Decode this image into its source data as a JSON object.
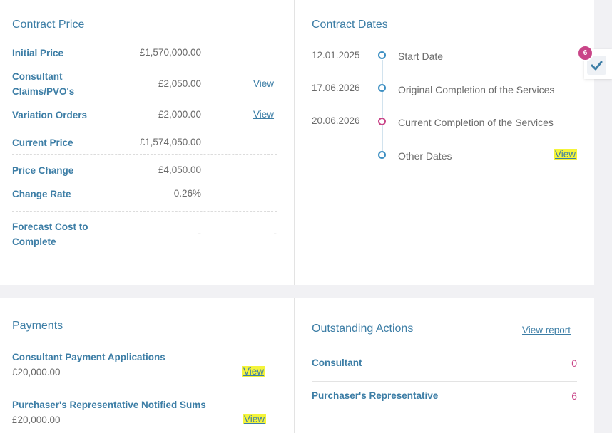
{
  "contract_price": {
    "title": "Contract Price",
    "rows": [
      {
        "label": "Initial Price",
        "value": "£1,570,000.00"
      },
      {
        "label": "Consultant Claims/PVO's",
        "value": "£2,050.00",
        "link": "View"
      },
      {
        "label": "Variation Orders",
        "value": "£2,000.00",
        "link": "View"
      },
      {
        "label": "Current Price",
        "value": "£1,574,050.00"
      },
      {
        "label": "Price Change",
        "value": "£4,050.00"
      },
      {
        "label": "Change Rate",
        "value": "0.26%"
      },
      {
        "label": "Forecast Cost to Complete",
        "value": "-",
        "extra": "-"
      }
    ]
  },
  "contract_dates": {
    "title": "Contract Dates",
    "items": [
      {
        "date": "12.01.2025",
        "label": "Start Date",
        "status": "blue"
      },
      {
        "date": "17.06.2026",
        "label": "Original Completion of the Services",
        "status": "blue"
      },
      {
        "date": "20.06.2026",
        "label": "Current Completion of the Services",
        "status": "pink"
      },
      {
        "date": "",
        "label": "Other Dates",
        "status": "blue",
        "link": "View"
      }
    ]
  },
  "notification": {
    "badge_count": "6"
  },
  "payments": {
    "title": "Payments",
    "items": [
      {
        "label": "Consultant Payment Applications",
        "amount": "£20,000.00",
        "link": "View"
      },
      {
        "label": "Purchaser's Representative Notified Sums",
        "amount": "£20,000.00",
        "link": "View"
      }
    ]
  },
  "outstanding_actions": {
    "title": "Outstanding Actions",
    "report_link": "View report",
    "items": [
      {
        "label": "Consultant",
        "count": "0"
      },
      {
        "label": "Purchaser's Representative",
        "count": "6"
      }
    ]
  },
  "colors": {
    "accent": "#3d7ea6",
    "pink": "#c94588",
    "highlight": "#f4f43a"
  }
}
